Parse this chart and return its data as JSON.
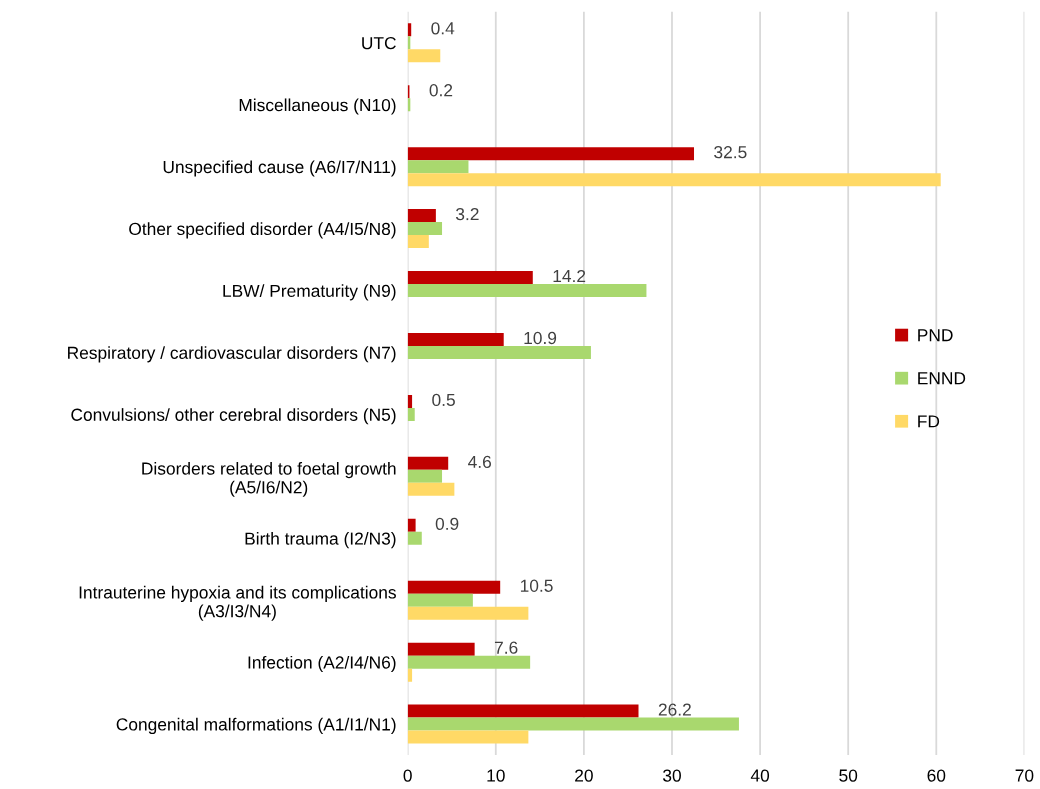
{
  "chart_data": {
    "type": "bar",
    "orientation": "horizontal",
    "categories": [
      "UTC",
      "Miscellaneous (N10)",
      "Unspecified cause (A6/I7/N11)",
      "Other specified disorder (A4/I5/N8)",
      "LBW/ Prematurity (N9)",
      "Respiratory / cardiovascular disorders (N7)",
      "Convulsions/ other cerebral disorders (N5)",
      "Disorders related to foetal growth\n(A5/I6/N2)",
      "Birth trauma (I2/N3)",
      "Intrauterine hypoxia and its complications\n(A3/I3/N4)",
      "Infection (A2/I4/N6)",
      "Congenital malformations (A1/I1/N1)"
    ],
    "series": [
      {
        "name": "PND",
        "color": "#c00000",
        "values": [
          0.4,
          0.2,
          32.5,
          3.2,
          14.2,
          10.9,
          0.5,
          4.6,
          0.9,
          10.5,
          7.6,
          26.2
        ],
        "value_labels": [
          "0.4",
          "0.2",
          "32.5",
          "3.2",
          "14.2",
          "10.9",
          "0.5",
          "4.6",
          "0.9",
          "10.5",
          "7.6",
          "26.2"
        ]
      },
      {
        "name": "ENND",
        "color": "#a9d86e",
        "values": [
          0.3,
          0.3,
          6.9,
          3.9,
          27.1,
          20.8,
          0.8,
          3.9,
          1.6,
          7.4,
          13.9,
          37.6
        ]
      },
      {
        "name": "FD",
        "color": "#ffd966",
        "values": [
          3.7,
          null,
          60.5,
          2.4,
          null,
          null,
          null,
          5.3,
          null,
          13.7,
          0.5,
          13.7
        ]
      }
    ],
    "xlim": [
      0,
      70
    ],
    "xticks": [
      0,
      10,
      20,
      30,
      40,
      50,
      60,
      70
    ],
    "grid": "x",
    "legend": "right"
  }
}
